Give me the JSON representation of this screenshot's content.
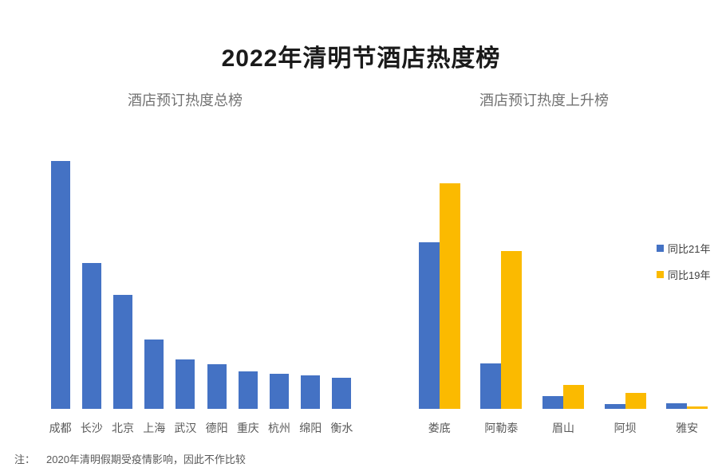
{
  "header": {
    "title": "2022年清明节酒店热度榜"
  },
  "chart_data": [
    {
      "id": "total",
      "type": "bar",
      "title": "酒店预订热度总榜",
      "categories": [
        "成都",
        "长沙",
        "北京",
        "上海",
        "武汉",
        "德阳",
        "重庆",
        "杭州",
        "绵阳",
        "衡水"
      ],
      "series": [
        {
          "name": "酒店预订热度",
          "color": "#4472C4",
          "values": [
            100,
            59,
            46,
            28,
            20,
            18,
            15,
            14,
            13.5,
            12.5
          ]
        }
      ],
      "ylim": [
        0,
        100
      ],
      "grid": false,
      "axis_values_shown": false,
      "legend_position": "none"
    },
    {
      "id": "rising",
      "type": "bar",
      "title": "酒店预订热度上升榜",
      "categories": [
        "娄底",
        "阿勒泰",
        "眉山",
        "阿坝",
        "雅安"
      ],
      "series": [
        {
          "name": "同比21年",
          "color": "#4472C4",
          "values": [
            74,
            20,
            5.5,
            2,
            2.5
          ]
        },
        {
          "name": "同比19年",
          "color": "#FBBA00",
          "values": [
            100,
            70,
            10.5,
            7,
            1
          ]
        }
      ],
      "ylim": [
        0,
        100
      ],
      "grid": false,
      "axis_values_shown": false,
      "legend_position": "right"
    }
  ],
  "footnote": {
    "label": "注：",
    "text": "2020年清明假期受疫情影响，因此不作比较"
  },
  "colors": {
    "background": "#ffffff",
    "title_text": "#1a1a1a",
    "subtitle_text": "#737373",
    "axis_label_text": "#595959",
    "series_blue": "#4472C4",
    "series_yellow": "#FBBA00"
  }
}
